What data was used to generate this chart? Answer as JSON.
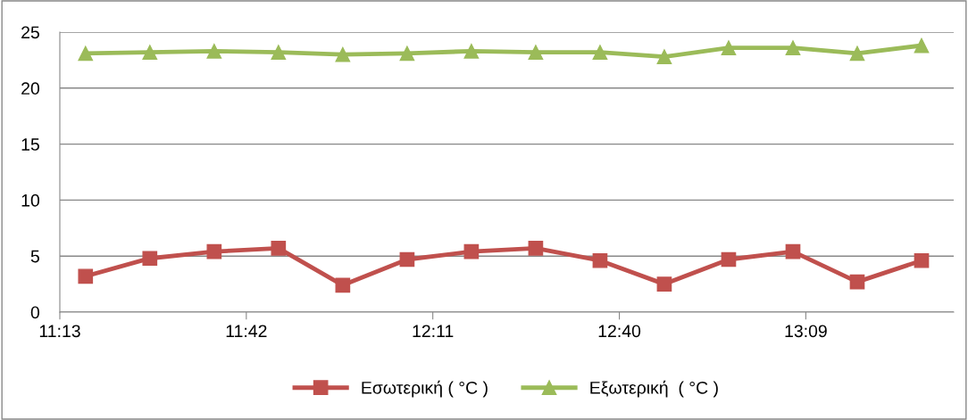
{
  "chart_data": {
    "type": "line",
    "x": [
      11.2833,
      11.45,
      11.6167,
      11.7833,
      11.95,
      12.1167,
      12.2833,
      12.45,
      12.6167,
      12.7833,
      12.95,
      13.1167,
      13.2833,
      13.45
    ],
    "series": [
      {
        "name": "Εσωτερική ( °C )",
        "color": "#c0504d",
        "marker": "square",
        "values": [
          3.2,
          4.8,
          5.4,
          5.7,
          2.4,
          4.7,
          5.4,
          5.7,
          4.6,
          2.5,
          4.7,
          5.4,
          2.7,
          4.6
        ]
      },
      {
        "name": "Εξωτερική  ( °C )",
        "color": "#9bbb59",
        "marker": "triangle",
        "values": [
          23.1,
          23.2,
          23.3,
          23.2,
          23.0,
          23.1,
          23.3,
          23.2,
          23.2,
          22.8,
          23.6,
          23.6,
          23.1,
          23.8
        ]
      }
    ],
    "xlim": [
      11.2167,
      13.5333
    ],
    "xticks": [
      {
        "value": 11.2167,
        "label": "11:13"
      },
      {
        "value": 11.7,
        "label": "11:42"
      },
      {
        "value": 12.1833,
        "label": "12:11"
      },
      {
        "value": 12.6667,
        "label": "12:40"
      },
      {
        "value": 13.15,
        "label": "13:09"
      }
    ],
    "ylim": [
      0,
      25
    ],
    "yticks": [
      0,
      5,
      10,
      15,
      20,
      25
    ],
    "grid": "y",
    "legend": "bottom",
    "line_style": "solid"
  }
}
